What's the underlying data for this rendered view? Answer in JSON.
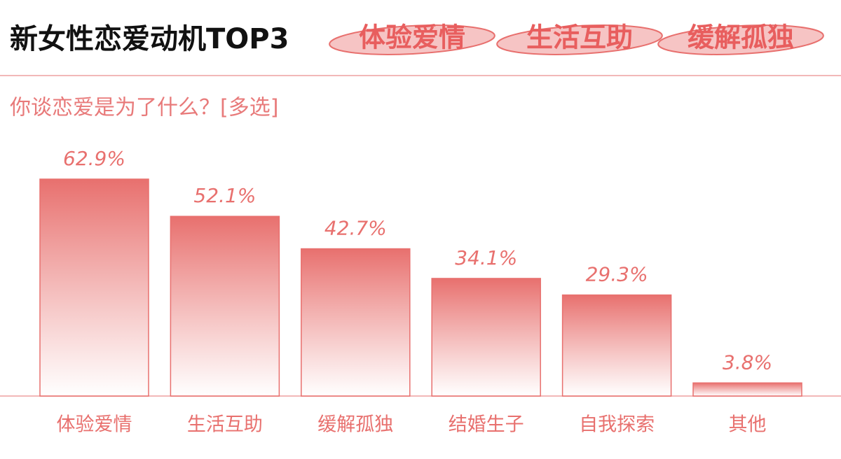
{
  "chart_data": {
    "type": "bar",
    "title": "新女性恋爱动机TOP3",
    "title_tags": [
      "体验爱情",
      "生活互助",
      "缓解孤独"
    ],
    "subtitle": "你谈恋爱是为了什么？[多选]",
    "categories": [
      "体验爱情",
      "生活互助",
      "缓解孤独",
      "结婚生子",
      "自我探索",
      "其他"
    ],
    "values": [
      62.9,
      52.1,
      42.7,
      34.1,
      29.3,
      3.8
    ],
    "value_labels": [
      "62.9%",
      "52.1%",
      "42.7%",
      "34.1%",
      "29.3%",
      "3.8%"
    ],
    "color": "#e8706e"
  }
}
